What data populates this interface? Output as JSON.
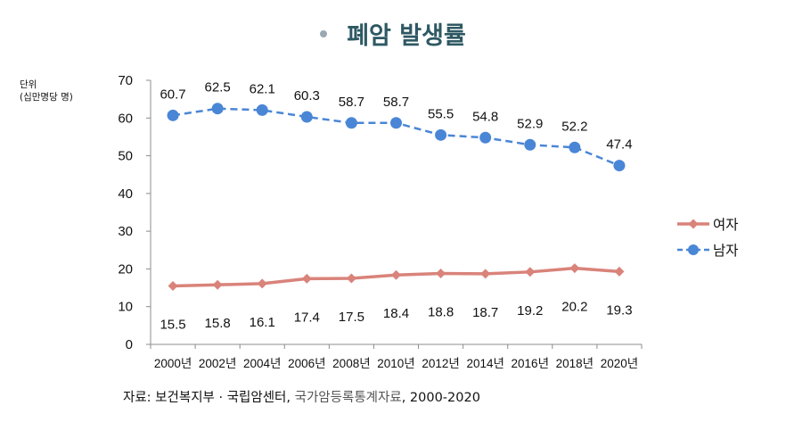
{
  "title": "폐암 발생률",
  "unit": {
    "line1": "단위",
    "line2": "(십만명당 명)"
  },
  "source": {
    "part1": "자료: 보건복지부 · 국립암센터, ",
    "part2": "국가암등록통계자료",
    "part3": ", 2000-2020"
  },
  "chart_data": {
    "type": "line",
    "title": "폐암 발생률",
    "xlabel": "",
    "ylabel": "단위 (십만명당 명)",
    "categories": [
      "2000년",
      "2002년",
      "2004년",
      "2006년",
      "2008년",
      "2010년",
      "2012년",
      "2014년",
      "2016년",
      "2018년",
      "2020년"
    ],
    "ylim": [
      0,
      70
    ],
    "yticks": [
      0,
      10,
      20,
      30,
      40,
      50,
      60,
      70
    ],
    "grid": false,
    "legend_position": "right",
    "series": [
      {
        "name": "여자",
        "color": "#d9837a",
        "marker": "diamond",
        "line_style": "solid",
        "label_position": "below",
        "values": [
          15.5,
          15.8,
          16.1,
          17.4,
          17.5,
          18.4,
          18.8,
          18.7,
          19.2,
          20.2,
          19.3
        ]
      },
      {
        "name": "남자",
        "color": "#4a86d6",
        "marker": "circle",
        "line_style": "dashed",
        "label_position": "above",
        "values": [
          60.7,
          62.5,
          62.1,
          60.3,
          58.7,
          58.7,
          55.5,
          54.8,
          52.9,
          52.2,
          47.4
        ]
      }
    ]
  }
}
